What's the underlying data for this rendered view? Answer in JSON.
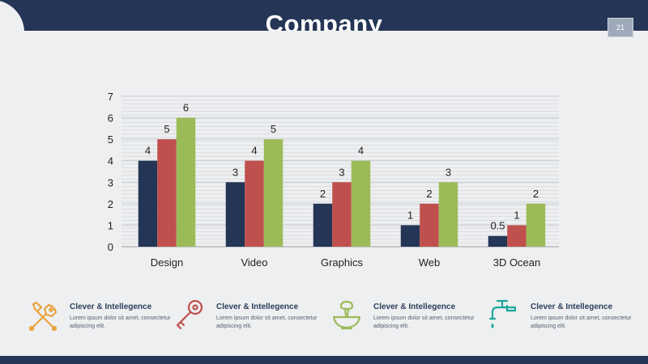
{
  "header": {
    "title": "Company",
    "page_number": "21"
  },
  "chart_data": {
    "type": "bar",
    "categories": [
      "Design",
      "Video",
      "Graphics",
      "Web",
      "3D Ocean"
    ],
    "series": [
      {
        "values": [
          4,
          3,
          2,
          1,
          0.5
        ],
        "color": "#243556"
      },
      {
        "values": [
          5,
          4,
          3,
          2,
          1
        ],
        "color": "#c0504d"
      },
      {
        "values": [
          6,
          5,
          4,
          3,
          2
        ],
        "color": "#9bbb59"
      }
    ],
    "data_labels": [
      [
        "4",
        "3",
        "2",
        "1",
        "0.5"
      ],
      [
        "5",
        "4",
        "3",
        "2",
        "1"
      ],
      [
        "6",
        "5",
        "4",
        "3",
        "2"
      ]
    ],
    "yticks": [
      "0",
      "1",
      "2",
      "3",
      "4",
      "5",
      "6",
      "7"
    ],
    "ylim": [
      0,
      7
    ],
    "grid": true,
    "legend": "none",
    "title": ""
  },
  "features": [
    {
      "icon": "tools-icon",
      "color": "#e8a33d",
      "title": "Clever & Intellegence",
      "body": "Lorem ipsum dolor sit amet, consectetur adipiscing elit."
    },
    {
      "icon": "key-icon",
      "color": "#c0504d",
      "title": "Clever & Intellegence",
      "body": "Lorem ipsum dolor sit amet, consectetur adipiscing elit."
    },
    {
      "icon": "mortar-pestle-icon",
      "color": "#9bbb59",
      "title": "Clever & Intellegence",
      "body": "Lorem ipsum dolor sit amet, consectetur adipiscing elit."
    },
    {
      "icon": "faucet-icon",
      "color": "#1aa89a",
      "title": "Clever & Intellegence",
      "body": "Lorem ipsum dolor sit amet, consectetur adipiscing elit."
    }
  ]
}
